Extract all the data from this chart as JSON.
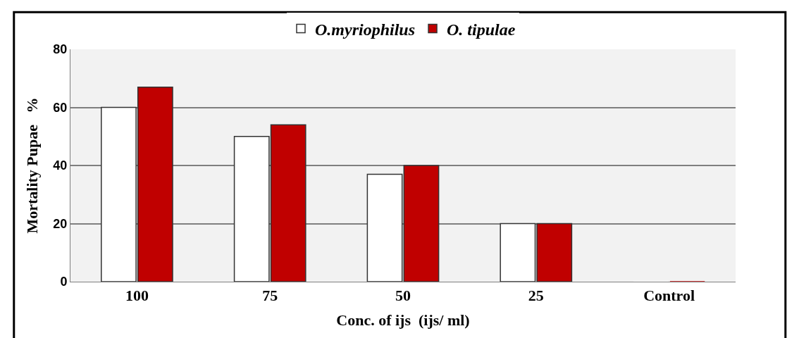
{
  "chart_data": {
    "type": "bar",
    "categories": [
      "100",
      "75",
      "50",
      "25",
      "Control"
    ],
    "series": [
      {
        "name": "O.myriophilus",
        "color": "#ffffff",
        "values": [
          60,
          50,
          37,
          20,
          0
        ]
      },
      {
        "name": "O. tipulae",
        "color": "#c00000",
        "values": [
          67,
          54,
          40,
          20,
          0
        ]
      }
    ],
    "xlabel": "Conc. of ijs  (ijs/ ml)",
    "ylabel": "Mortality Pupae   %",
    "ylim": [
      0,
      80
    ],
    "yticks": [
      0,
      20,
      40,
      60,
      80
    ],
    "grid": "y",
    "legend": "top"
  }
}
